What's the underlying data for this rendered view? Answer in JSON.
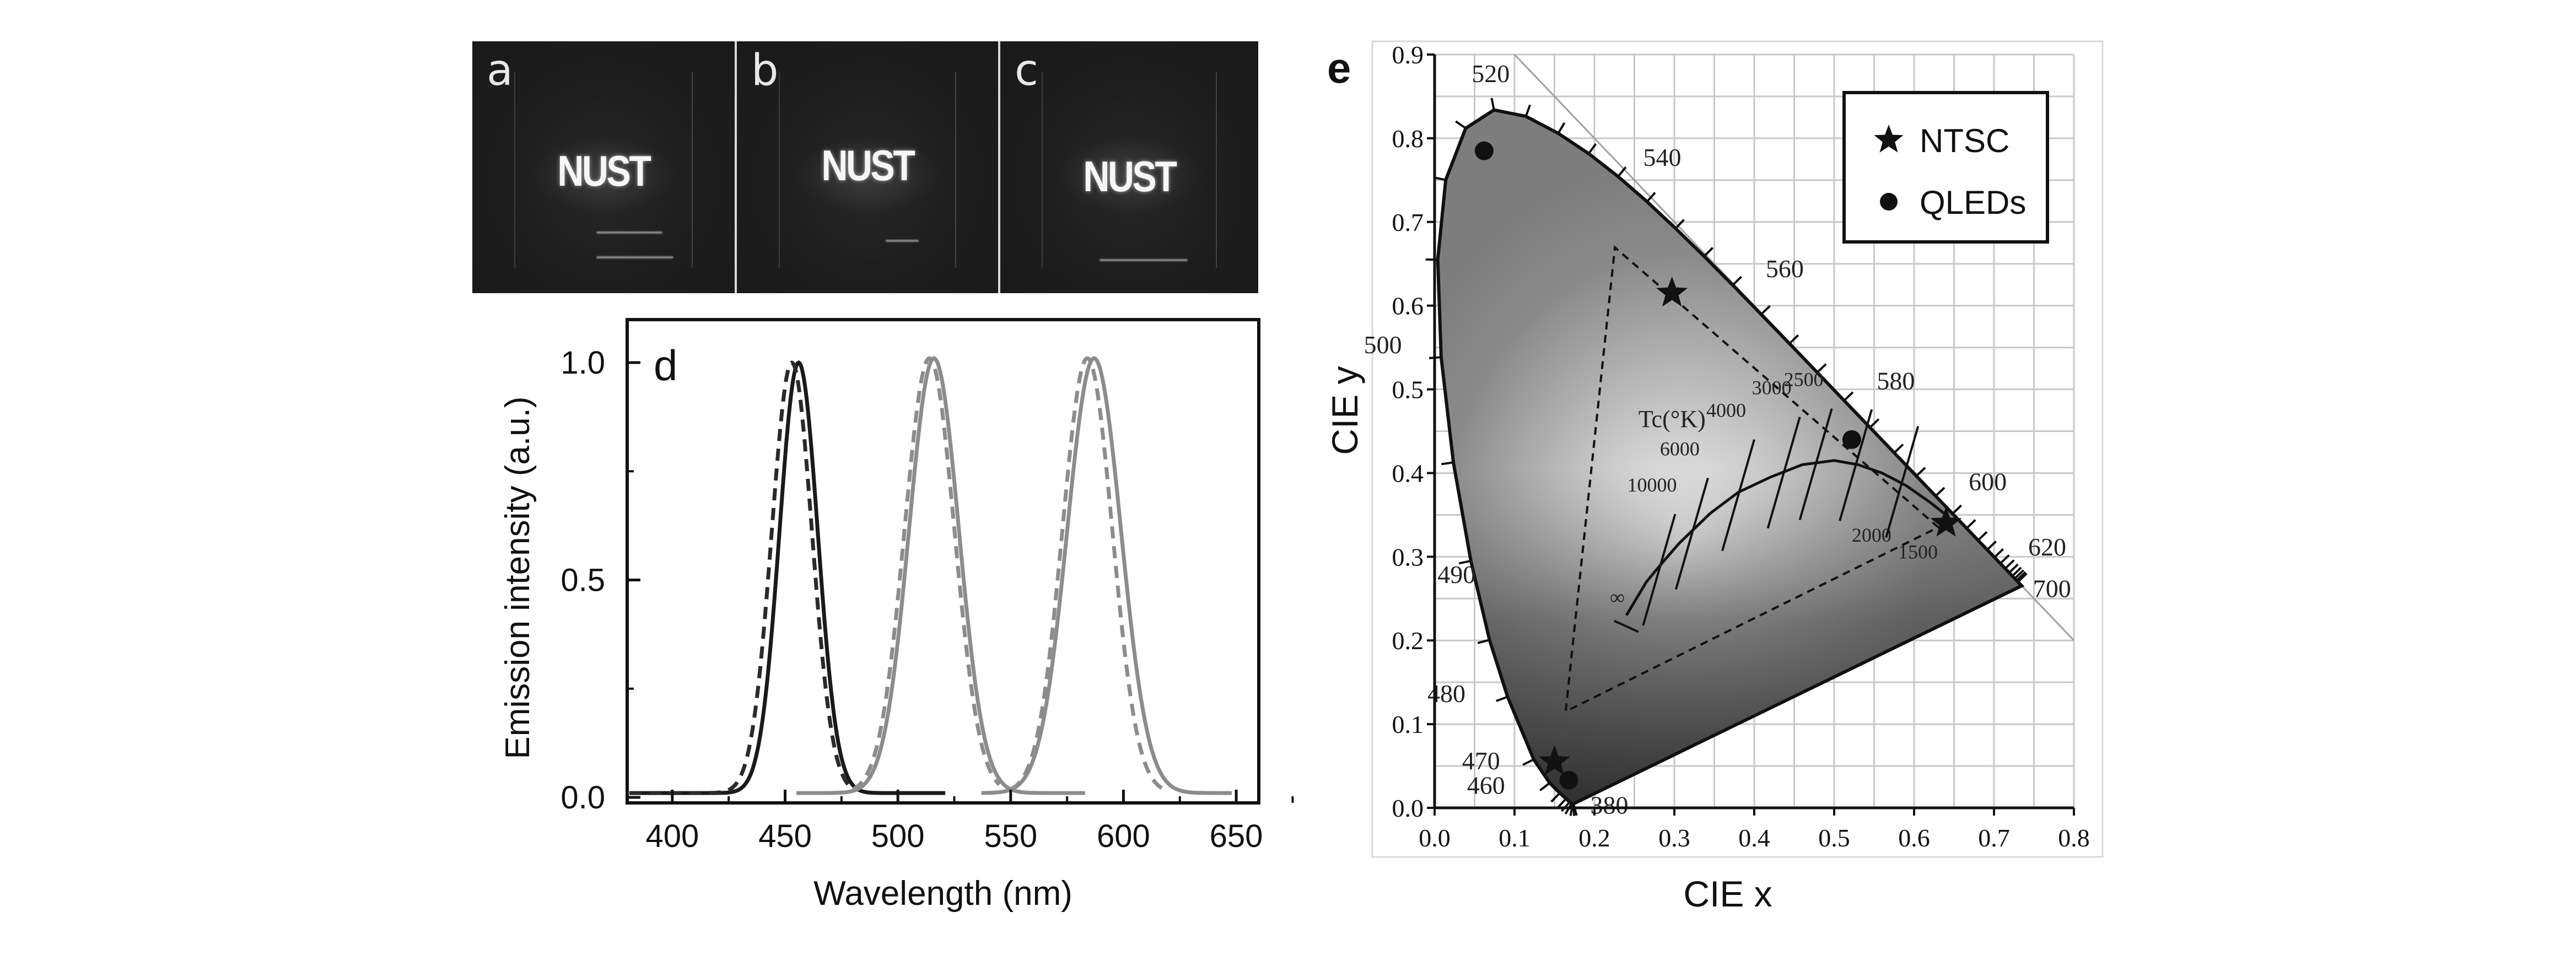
{
  "photos": {
    "panels": [
      {
        "label": "a",
        "text": "NUST"
      },
      {
        "label": "b",
        "text": "NUST"
      },
      {
        "label": "c",
        "text": "NUST"
      }
    ]
  },
  "chart_data": [
    {
      "panel": "d",
      "type": "line",
      "title": "",
      "xlabel": "Wavelength (nm)",
      "ylabel": "Emission intensity (a.u.)",
      "xlim": [
        380,
        660
      ],
      "ylim": [
        -0.02,
        1.08
      ],
      "xticks": [
        400,
        450,
        500,
        550,
        600,
        650
      ],
      "xtick_labels": [
        "400",
        "450",
        "500",
        "550",
        "600",
        "650"
      ],
      "yticks": [
        0.0,
        0.5,
        1.0
      ],
      "ytick_labels": [
        "0.0",
        "0.5",
        "1.0"
      ],
      "grid": false,
      "legend": null,
      "series": [
        {
          "name": "blue solid",
          "style": "solid",
          "color": "#1a1a1a",
          "peak_nm": 456,
          "fwhm_nm": 20,
          "range_nm": [
            381,
            521
          ],
          "peak_value": 0.99
        },
        {
          "name": "blue dashed",
          "style": "dashed",
          "color": "#2a2a2a",
          "peak_nm": 453,
          "fwhm_nm": 21,
          "range_nm": [
            381,
            480
          ],
          "peak_value": 0.99
        },
        {
          "name": "green solid",
          "style": "solid",
          "color": "#8c8c8c",
          "peak_nm": 516,
          "fwhm_nm": 26,
          "range_nm": [
            455,
            583
          ],
          "peak_value": 1.0
        },
        {
          "name": "green dashed",
          "style": "dashed",
          "color": "#8c8c8c",
          "peak_nm": 514,
          "fwhm_nm": 26,
          "range_nm": [
            480,
            545
          ],
          "peak_value": 1.0
        },
        {
          "name": "red solid",
          "style": "solid",
          "color": "#8c8c8c",
          "peak_nm": 587,
          "fwhm_nm": 28,
          "range_nm": [
            537,
            648
          ],
          "peak_value": 1.0
        },
        {
          "name": "red dashed",
          "style": "dashed",
          "color": "#8c8c8c",
          "peak_nm": 584,
          "fwhm_nm": 26,
          "range_nm": [
            550,
            620
          ],
          "peak_value": 1.0
        }
      ]
    },
    {
      "panel": "e",
      "type": "scatter",
      "title": "",
      "xlabel": "CIE x",
      "ylabel": "CIE y",
      "xlim": [
        0.0,
        0.8
      ],
      "ylim": [
        0.0,
        0.9
      ],
      "xticks": [
        0.0,
        0.1,
        0.2,
        0.3,
        0.4,
        0.5,
        0.6,
        0.7,
        0.8
      ],
      "xtick_labels": [
        "0.0",
        "0.1",
        "0.2",
        "0.3",
        "0.4",
        "0.5",
        "0.6",
        "0.7",
        "0.8"
      ],
      "yticks": [
        0.0,
        0.1,
        0.2,
        0.3,
        0.4,
        0.5,
        0.6,
        0.7,
        0.8,
        0.9
      ],
      "ytick_labels": [
        "0.0",
        "0.1",
        "0.2",
        "0.3",
        "0.4",
        "0.5",
        "0.6",
        "0.7",
        "0.8",
        "0.9"
      ],
      "grid": true,
      "grid_step": 0.05,
      "legend": {
        "position": "top-right",
        "entries": [
          {
            "marker": "star",
            "label": "NTSC"
          },
          {
            "marker": "circle",
            "label": "QLEDs"
          }
        ]
      },
      "series": [
        {
          "name": "NTSC",
          "marker": "star",
          "points": [
            [
              0.67,
              0.33
            ],
            [
              0.21,
              0.71
            ],
            [
              0.14,
              0.08
            ]
          ]
        },
        {
          "name": "QLEDs",
          "marker": "circle",
          "points": [
            [
              0.062,
              0.785
            ],
            [
              0.522,
              0.44
            ],
            [
              0.168,
              0.033
            ]
          ]
        }
      ],
      "spectral_locus": [
        [
          0.1741,
          0.005
        ],
        [
          0.1738,
          0.0049
        ],
        [
          0.1733,
          0.0048
        ],
        [
          0.1726,
          0.0048
        ],
        [
          0.1714,
          0.0051
        ],
        [
          0.1689,
          0.0069
        ],
        [
          0.1644,
          0.0109
        ],
        [
          0.1566,
          0.0177
        ],
        [
          0.144,
          0.0297
        ],
        [
          0.1241,
          0.0578
        ],
        [
          0.0913,
          0.1327
        ],
        [
          0.0687,
          0.2007
        ],
        [
          0.0454,
          0.295
        ],
        [
          0.0235,
          0.4127
        ],
        [
          0.0082,
          0.5384
        ],
        [
          0.0039,
          0.6548
        ],
        [
          0.0139,
          0.7502
        ],
        [
          0.0389,
          0.812
        ],
        [
          0.0743,
          0.8338
        ],
        [
          0.1142,
          0.8262
        ],
        [
          0.1547,
          0.8059
        ],
        [
          0.1929,
          0.7816
        ],
        [
          0.2296,
          0.7543
        ],
        [
          0.2658,
          0.7243
        ],
        [
          0.3016,
          0.6923
        ],
        [
          0.3373,
          0.6589
        ],
        [
          0.3731,
          0.6245
        ],
        [
          0.4087,
          0.5896
        ],
        [
          0.4441,
          0.5547
        ],
        [
          0.4788,
          0.5202
        ],
        [
          0.5125,
          0.4866
        ],
        [
          0.5448,
          0.4544
        ],
        [
          0.5752,
          0.4242
        ],
        [
          0.6029,
          0.3965
        ],
        [
          0.627,
          0.3725
        ],
        [
          0.6482,
          0.3514
        ],
        [
          0.6658,
          0.334
        ],
        [
          0.6801,
          0.3197
        ],
        [
          0.6915,
          0.3083
        ],
        [
          0.7006,
          0.2993
        ],
        [
          0.7079,
          0.292
        ],
        [
          0.714,
          0.2859
        ],
        [
          0.719,
          0.2809
        ],
        [
          0.723,
          0.277
        ],
        [
          0.726,
          0.274
        ],
        [
          0.7283,
          0.2717
        ],
        [
          0.73,
          0.27
        ],
        [
          0.7347,
          0.2653
        ]
      ],
      "wavelength_labels": [
        {
          "nm": "380",
          "x": 0.1741,
          "y": 0.005
        },
        {
          "nm": "460",
          "x": 0.144,
          "y": 0.03
        },
        {
          "nm": "470",
          "x": 0.124,
          "y": 0.058
        },
        {
          "nm": "480",
          "x": 0.091,
          "y": 0.133
        },
        {
          "nm": "490",
          "x": 0.045,
          "y": 0.295
        },
        {
          "nm": "500",
          "x": 0.008,
          "y": 0.538
        },
        {
          "nm": "520",
          "x": 0.074,
          "y": 0.834
        },
        {
          "nm": "540",
          "x": 0.23,
          "y": 0.754
        },
        {
          "nm": "560",
          "x": 0.373,
          "y": 0.624
        },
        {
          "nm": "580",
          "x": 0.512,
          "y": 0.487
        },
        {
          "nm": "600",
          "x": 0.627,
          "y": 0.373
        },
        {
          "nm": "620",
          "x": 0.691,
          "y": 0.308
        },
        {
          "nm": "700",
          "x": 0.735,
          "y": 0.265
        }
      ],
      "planckian_locus": {
        "label": "Tc(°K)",
        "points": [
          [
            0.24,
            0.23
          ],
          [
            0.265,
            0.27
          ],
          [
            0.285,
            0.293
          ],
          [
            0.306,
            0.316
          ],
          [
            0.345,
            0.352
          ],
          [
            0.38,
            0.377
          ],
          [
            0.42,
            0.395
          ],
          [
            0.46,
            0.41
          ],
          [
            0.5,
            0.415
          ],
          [
            0.53,
            0.41
          ],
          [
            0.56,
            0.4
          ],
          [
            0.59,
            0.385
          ],
          [
            0.62,
            0.365
          ],
          [
            0.64,
            0.35
          ]
        ],
        "isotherms": [
          {
            "label": "10000",
            "x": 0.281,
            "y": 0.288
          },
          {
            "label": "6000",
            "x": 0.322,
            "y": 0.331
          },
          {
            "label": "4000",
            "x": 0.38,
            "y": 0.377
          },
          {
            "label": "3000",
            "x": 0.437,
            "y": 0.404
          },
          {
            "label": "2500",
            "x": 0.477,
            "y": 0.414
          },
          {
            "label": "2000",
            "x": 0.527,
            "y": 0.413
          },
          {
            "label": "1500",
            "x": 0.585,
            "y": 0.393
          },
          {
            "label": "∞",
            "x": 0.24,
            "y": 0.23
          }
        ]
      }
    }
  ]
}
